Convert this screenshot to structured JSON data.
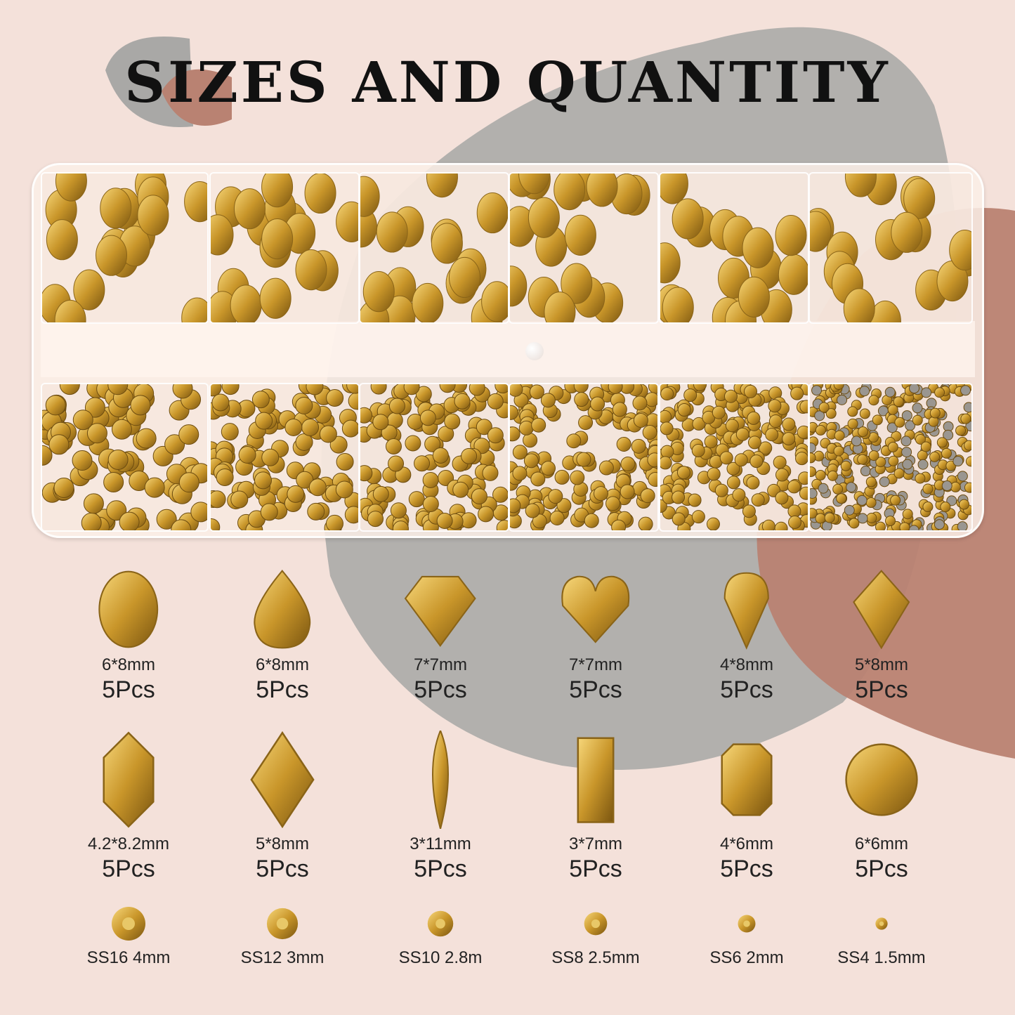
{
  "title": "SIZES AND QUANTITY",
  "colors": {
    "background": "#f4e1da",
    "gray_blob": "#b2b0ad",
    "terracotta_blob": "#b98272",
    "gold": "#c9962a"
  },
  "shapes_row1": [
    {
      "shape": "oval-icon",
      "size": "6*8mm",
      "qty": "5Pcs"
    },
    {
      "shape": "teardrop-icon",
      "size": "6*8mm",
      "qty": "5Pcs"
    },
    {
      "shape": "trillion-icon",
      "size": "7*7mm",
      "qty": "5Pcs"
    },
    {
      "shape": "heart-icon",
      "size": "7*7mm",
      "qty": "5Pcs"
    },
    {
      "shape": "drop-icon",
      "size": "4*8mm",
      "qty": "5Pcs"
    },
    {
      "shape": "kite-icon",
      "size": "5*8mm",
      "qty": "5Pcs"
    }
  ],
  "shapes_row2": [
    {
      "shape": "hexagon-icon",
      "size": "4.2*8.2mm",
      "qty": "5Pcs"
    },
    {
      "shape": "rhombus-icon",
      "size": "5*8mm",
      "qty": "5Pcs"
    },
    {
      "shape": "marquise-icon",
      "size": "3*11mm",
      "qty": "5Pcs"
    },
    {
      "shape": "baguette-icon",
      "size": "3*7mm",
      "qty": "5Pcs"
    },
    {
      "shape": "octagon-icon",
      "size": "4*6mm",
      "qty": "5Pcs"
    },
    {
      "shape": "round-icon",
      "size": "6*6mm",
      "qty": "5Pcs"
    }
  ],
  "round_sizes": [
    {
      "label": "SS16 4mm"
    },
    {
      "label": "SS12 3mm"
    },
    {
      "label": "SS10 2.8m"
    },
    {
      "label": "SS8 2.5mm"
    },
    {
      "label": "SS6 2mm"
    },
    {
      "label": "SS4 1.5mm"
    }
  ]
}
